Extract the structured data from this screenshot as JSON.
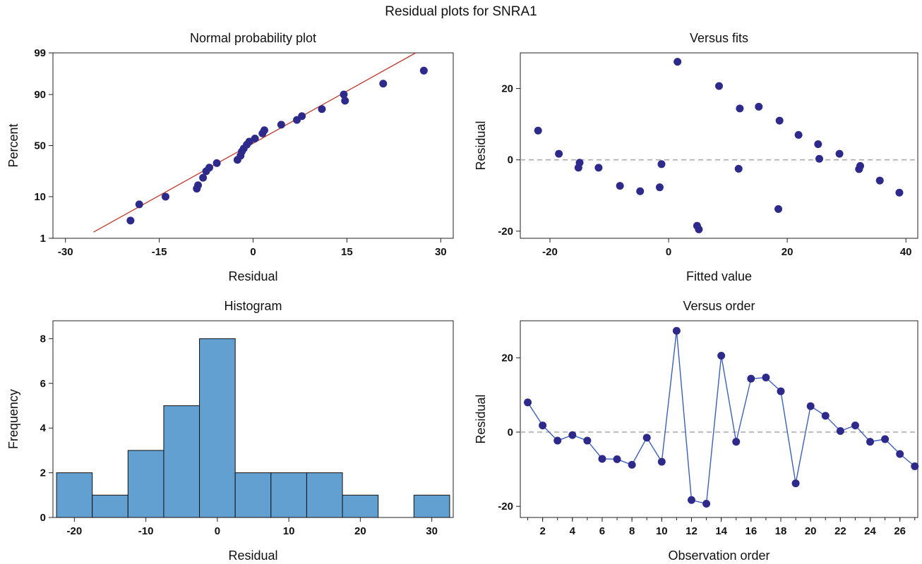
{
  "title": "Residual plots for SNRA1",
  "colors": {
    "point": "#2e2a8c",
    "fit_line": "#c0392b",
    "bar": "#62a0d1",
    "line": "#3b5fbf",
    "ref": "#aaaaaa"
  },
  "chart_data": [
    {
      "id": "normal",
      "type": "scatter",
      "title": "Normal probability plot",
      "xlabel": "Residual",
      "ylabel": "Percent",
      "xlim": [
        -32,
        32
      ],
      "xticks": [
        -30,
        -15,
        0,
        15,
        30
      ],
      "yticks": [
        1,
        10,
        50,
        90,
        99
      ],
      "scale": "normal-probability",
      "fit_line": {
        "x": [
          -25.5,
          26
        ],
        "y": [
          1.5,
          99
        ]
      },
      "points": {
        "x": [
          -19.6,
          -18.2,
          -14.0,
          -9.0,
          -8.8,
          -8.0,
          -7.5,
          -7.0,
          -5.8,
          -2.5,
          -2.0,
          -1.8,
          -1.5,
          -1.0,
          -0.6,
          0.3,
          1.5,
          1.8,
          4.5,
          7.0,
          7.8,
          11.0,
          14.7,
          14.5,
          20.8,
          27.3
        ],
        "y": [
          3,
          7,
          10,
          14,
          16,
          21,
          26,
          29,
          33,
          36,
          40,
          44,
          47,
          51,
          54,
          57,
          62,
          65,
          70,
          74,
          77,
          82,
          87,
          90,
          94,
          97
        ]
      }
    },
    {
      "id": "fits",
      "type": "scatter",
      "title": "Versus fits",
      "xlabel": "Fitted value",
      "ylabel": "Residual",
      "xlim": [
        -25,
        42
      ],
      "ylim": [
        -22,
        30
      ],
      "xticks": [
        -20,
        0,
        20,
        40
      ],
      "yticks": [
        -20,
        0,
        20
      ],
      "reference_y": 0,
      "points": {
        "x": [
          -22.0,
          -18.5,
          -15.2,
          -15.0,
          -11.8,
          -8.2,
          -4.8,
          -1.5,
          -1.2,
          1.5,
          4.8,
          5.1,
          8.5,
          11.8,
          12.0,
          15.2,
          18.5,
          18.7,
          21.9,
          25.2,
          25.4,
          28.8,
          32.1,
          32.3,
          35.6,
          38.9
        ],
        "y": [
          8.2,
          1.7,
          -2.2,
          -0.8,
          -2.2,
          -7.3,
          -8.8,
          -7.7,
          -1.2,
          27.5,
          -18.5,
          -19.5,
          20.7,
          -2.5,
          14.4,
          14.9,
          -13.8,
          11.0,
          7.0,
          4.4,
          0.3,
          1.7,
          -2.6,
          -1.7,
          -5.8,
          -9.2
        ]
      }
    },
    {
      "id": "hist",
      "type": "bar",
      "title": "Histogram",
      "xlabel": "Residual",
      "ylabel": "Frequency",
      "bin_edges": [
        -22.5,
        -17.5,
        -12.5,
        -7.5,
        -2.5,
        2.5,
        7.5,
        12.5,
        17.5,
        22.5,
        27.5,
        32.5
      ],
      "values": [
        2,
        1,
        3,
        5,
        8,
        2,
        2,
        2,
        1,
        0,
        1
      ],
      "xlim": [
        -23,
        33
      ],
      "ylim": [
        0,
        8.8
      ],
      "xticks": [
        -20,
        -10,
        0,
        10,
        20,
        30
      ],
      "yticks": [
        0,
        2,
        4,
        6,
        8
      ]
    },
    {
      "id": "order",
      "type": "line",
      "title": "Versus order",
      "xlabel": "Observation order",
      "ylabel": "Residual",
      "xlim": [
        0.5,
        27.2
      ],
      "ylim": [
        -23,
        30
      ],
      "xticks": [
        2,
        4,
        6,
        8,
        10,
        12,
        14,
        16,
        18,
        20,
        22,
        24,
        26
      ],
      "yticks": [
        -20,
        0,
        20
      ],
      "reference_y": 0,
      "x": [
        1,
        2,
        3,
        4,
        5,
        6,
        7,
        8,
        9,
        10,
        11,
        12,
        13,
        14,
        15,
        16,
        17,
        18,
        19,
        20,
        21,
        22,
        23,
        24,
        25,
        26,
        27
      ],
      "values": [
        8.0,
        1.8,
        -2.3,
        -0.8,
        -2.3,
        -7.2,
        -7.3,
        -8.8,
        -1.5,
        -8.0,
        27.3,
        -18.3,
        -19.3,
        20.6,
        -2.6,
        14.4,
        14.7,
        11.0,
        -13.8,
        7.0,
        4.4,
        0.3,
        1.8,
        -2.6,
        -1.9,
        -5.9,
        -9.2
      ]
    }
  ]
}
